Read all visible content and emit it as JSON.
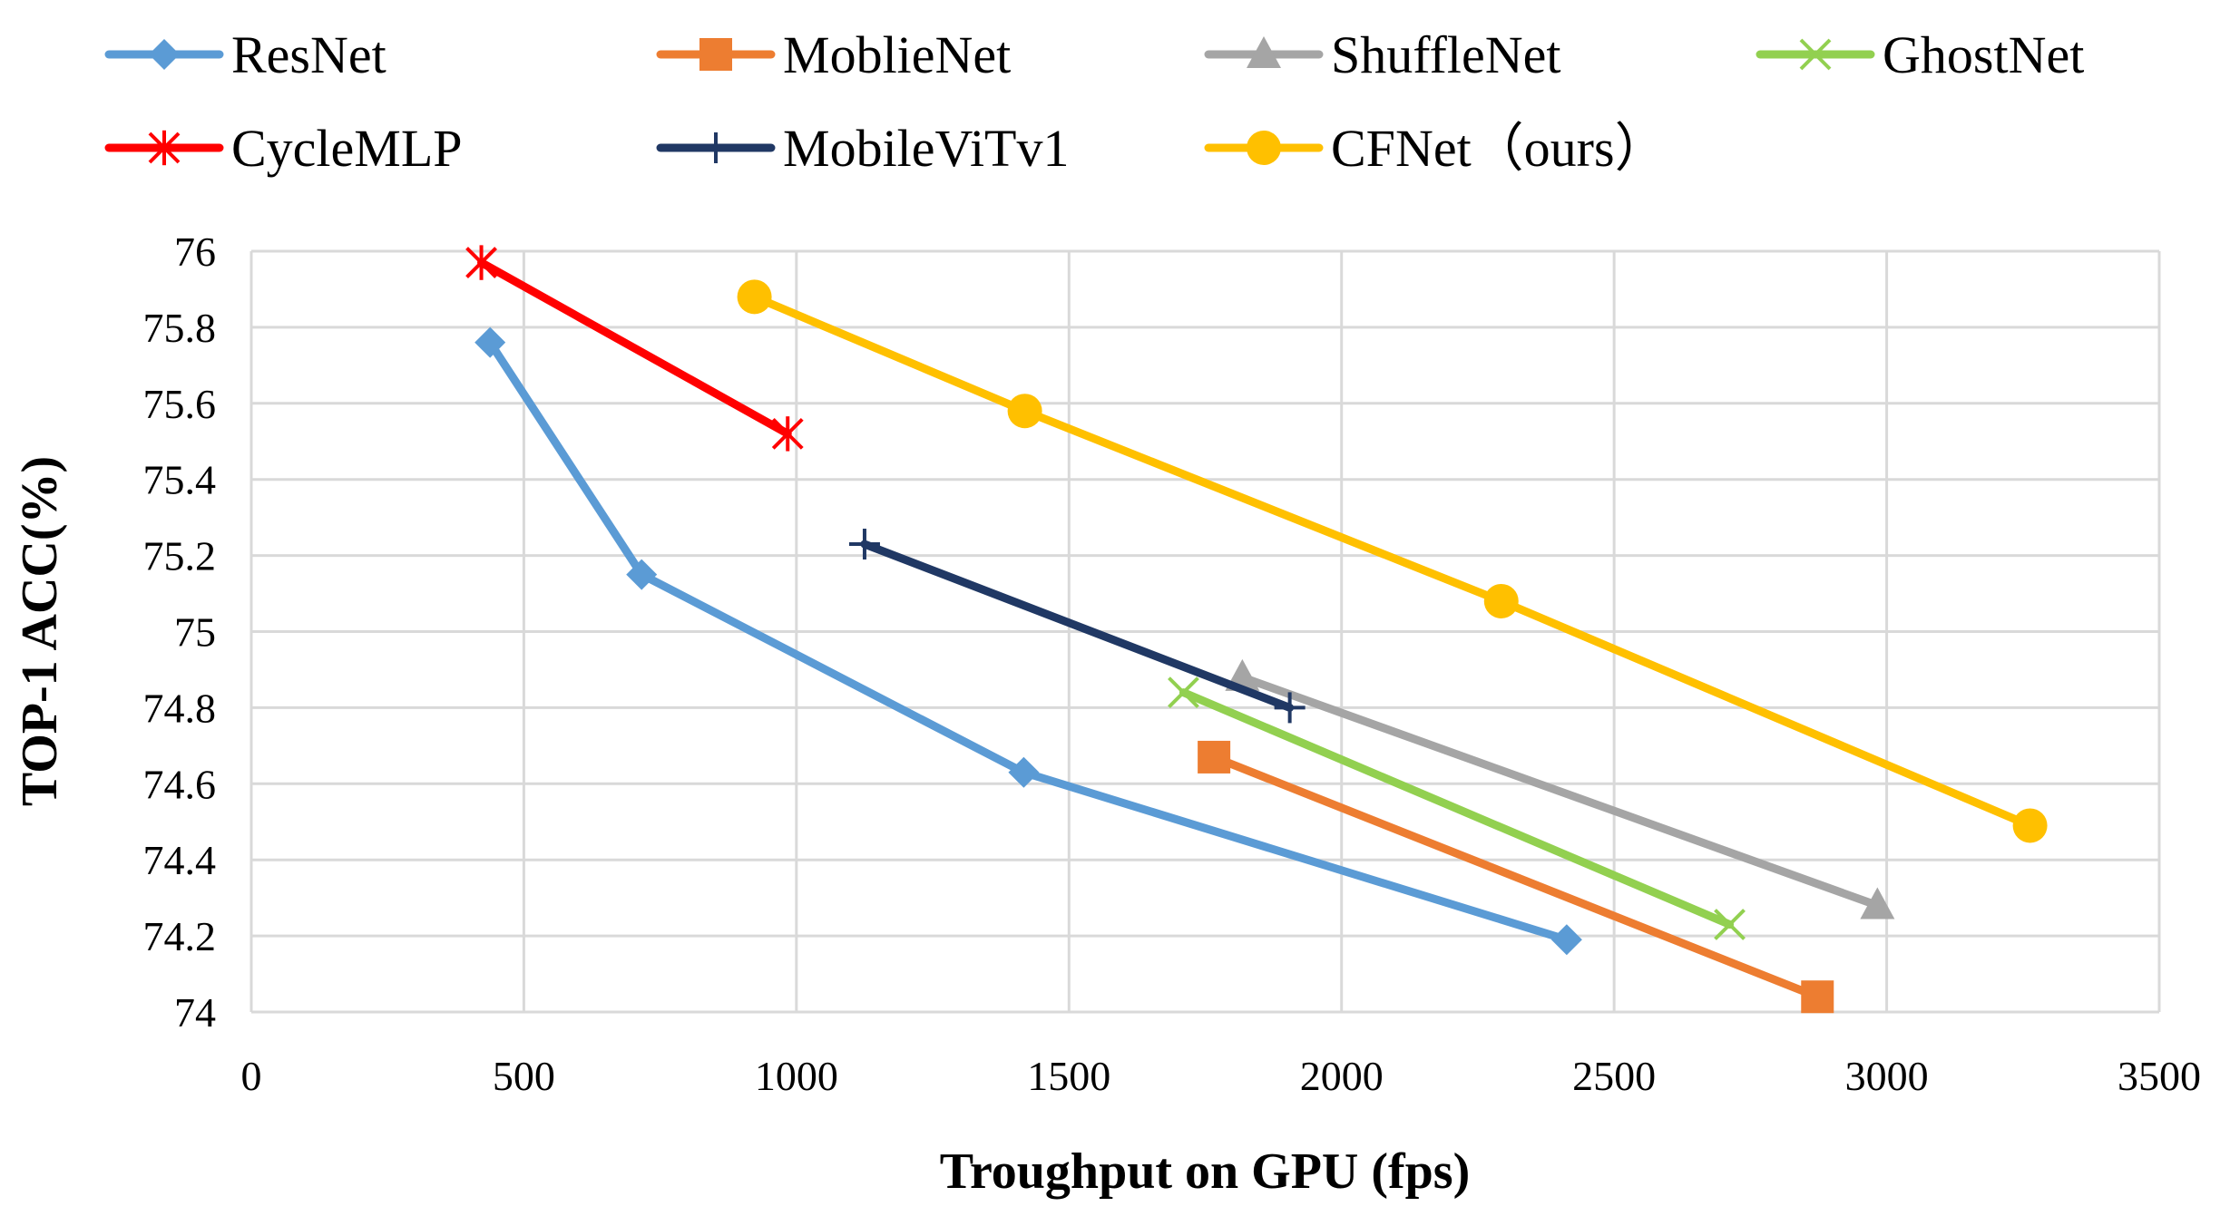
{
  "chart_data": {
    "type": "line",
    "title": "",
    "xlabel": "Troughput on GPU (fps)",
    "ylabel": "TOP-1 ACC(%)",
    "xlim": [
      0,
      3500
    ],
    "ylim": [
      74,
      76
    ],
    "xticks": [
      "0",
      "500",
      "1000",
      "1500",
      "2000",
      "2500",
      "3000",
      "3500"
    ],
    "yticks": [
      "74",
      "74.2",
      "74.4",
      "74.6",
      "74.8",
      "75",
      "75.2",
      "75.4",
      "75.6",
      "75.8",
      "76"
    ],
    "grid": true,
    "legend_position": "top",
    "series": [
      {
        "name": "ResNet",
        "color": "#5B9BD5",
        "marker": "diamond",
        "x": [
          438,
          716,
          1417,
          2413
        ],
        "y": [
          75.76,
          75.15,
          74.63,
          74.19
        ]
      },
      {
        "name": "MoblieNet",
        "color": "#ED7D31",
        "marker": "square",
        "x": [
          1766,
          2873
        ],
        "y": [
          74.67,
          74.04
        ]
      },
      {
        "name": "ShuffleNet",
        "color": "#A5A5A5",
        "marker": "triangle",
        "x": [
          1818,
          2983
        ],
        "y": [
          74.88,
          74.28
        ]
      },
      {
        "name": "GhostNet",
        "color": "#92D050",
        "marker": "x",
        "x": [
          1710,
          2712
        ],
        "y": [
          74.84,
          74.23
        ]
      },
      {
        "name": "CycleMLP",
        "color": "#FF0000",
        "marker": "star",
        "x": [
          422,
          984
        ],
        "y": [
          75.97,
          75.52
        ]
      },
      {
        "name": "MobileViTv1",
        "color": "#203864",
        "marker": "plus",
        "x": [
          1125,
          1905
        ],
        "y": [
          75.23,
          74.8
        ]
      },
      {
        "name": "CFNet（ours）",
        "color": "#FFC000",
        "marker": "circle",
        "x": [
          923,
          1419,
          2293,
          3263
        ],
        "y": [
          75.88,
          75.58,
          75.08,
          74.49
        ]
      }
    ]
  }
}
